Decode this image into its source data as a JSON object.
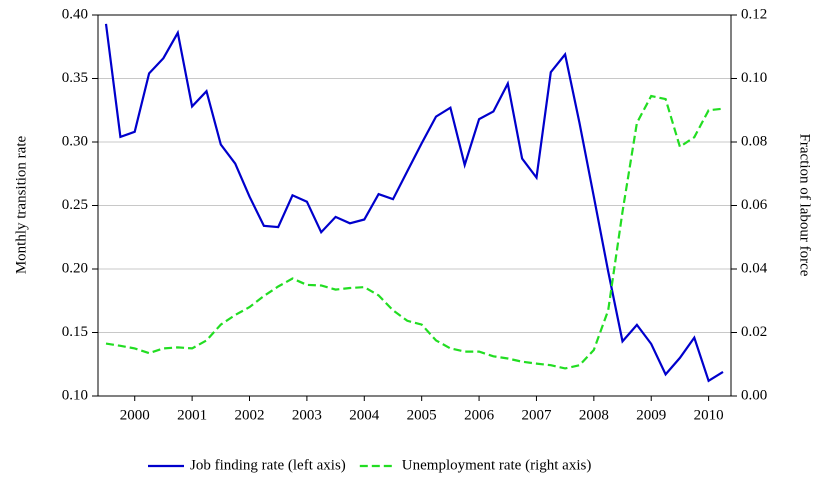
{
  "chart_data": {
    "type": "line",
    "ylabel": "Monthly transition rate",
    "y2label": "Fraction of labour force",
    "x": [
      2000.0,
      2000.25,
      2000.5,
      2000.75,
      2001.0,
      2001.25,
      2001.5,
      2001.75,
      2002.0,
      2002.25,
      2002.5,
      2002.75,
      2003.0,
      2003.25,
      2003.5,
      2003.75,
      2004.0,
      2004.25,
      2004.5,
      2004.75,
      2005.0,
      2005.25,
      2005.5,
      2005.75,
      2006.0,
      2006.25,
      2006.5,
      2006.75,
      2007.0,
      2007.25,
      2007.5,
      2007.75,
      2008.0,
      2008.25,
      2008.5,
      2008.75,
      2009.0,
      2009.25,
      2009.5,
      2009.75,
      2010.0,
      2010.25,
      2010.5,
      2010.75
    ],
    "xlim": [
      1999.86,
      2010.89
    ],
    "xticks": [
      {
        "value": 2000.5,
        "label": "2000"
      },
      {
        "value": 2001.5,
        "label": "2001"
      },
      {
        "value": 2002.5,
        "label": "2002"
      },
      {
        "value": 2003.5,
        "label": "2003"
      },
      {
        "value": 2004.5,
        "label": "2004"
      },
      {
        "value": 2005.5,
        "label": "2005"
      },
      {
        "value": 2006.5,
        "label": "2006"
      },
      {
        "value": 2007.5,
        "label": "2007"
      },
      {
        "value": 2008.5,
        "label": "2008"
      },
      {
        "value": 2009.5,
        "label": "2009"
      },
      {
        "value": 2010.5,
        "label": "2010"
      }
    ],
    "ylim": [
      0.1,
      0.4
    ],
    "yticks": [
      {
        "value": 0.1,
        "label": "0.10"
      },
      {
        "value": 0.15,
        "label": "0.15"
      },
      {
        "value": 0.2,
        "label": "0.20"
      },
      {
        "value": 0.25,
        "label": "0.25"
      },
      {
        "value": 0.3,
        "label": "0.30"
      },
      {
        "value": 0.35,
        "label": "0.35"
      },
      {
        "value": 0.4,
        "label": "0.40"
      }
    ],
    "y2lim": [
      0,
      0.12
    ],
    "y2ticks": [
      {
        "value": 0,
        "label": "0.00"
      },
      {
        "value": 0.02,
        "label": "0.02"
      },
      {
        "value": 0.04,
        "label": "0.04"
      },
      {
        "value": 0.06,
        "label": "0.06"
      },
      {
        "value": 0.08,
        "label": "0.08"
      },
      {
        "value": 0.1,
        "label": "0.10"
      },
      {
        "value": 0.12,
        "label": "0.12"
      }
    ],
    "grid": true,
    "legend": "bottom",
    "series": [
      {
        "name": "Job finding rate (left axis)",
        "color": "#0000cc",
        "dash": false,
        "values": [
          0.393,
          0.304,
          0.308,
          0.354,
          0.366,
          0.386,
          0.328,
          0.34,
          0.298,
          0.283,
          0.257,
          0.234,
          0.233,
          0.258,
          0.253,
          0.229,
          0.241,
          0.236,
          0.239,
          0.259,
          0.255,
          0.277,
          0.299,
          0.32,
          0.327,
          0.282,
          0.318,
          0.324,
          0.346,
          0.287,
          0.272,
          0.355,
          0.369,
          0.315,
          0.257,
          0.198,
          0.143,
          0.156,
          0.141,
          0.117,
          0.13,
          0.146,
          0.112,
          0.119
        ]
      },
      {
        "name": "Unemployment rate (right axis)",
        "color": "#22dd22",
        "dash": true,
        "axis": "y2",
        "values": [
          0.0165,
          0.0158,
          0.015,
          0.0135,
          0.015,
          0.0153,
          0.015,
          0.0175,
          0.0225,
          0.0255,
          0.028,
          0.0315,
          0.0345,
          0.037,
          0.035,
          0.0348,
          0.0335,
          0.034,
          0.0343,
          0.0317,
          0.027,
          0.0237,
          0.0225,
          0.0175,
          0.015,
          0.014,
          0.014,
          0.0125,
          0.0118,
          0.0108,
          0.0102,
          0.0097,
          0.0087,
          0.0097,
          0.0145,
          0.027,
          0.058,
          0.086,
          0.0945,
          0.0935,
          0.0785,
          0.0815,
          0.09,
          0.0905
        ]
      }
    ]
  }
}
